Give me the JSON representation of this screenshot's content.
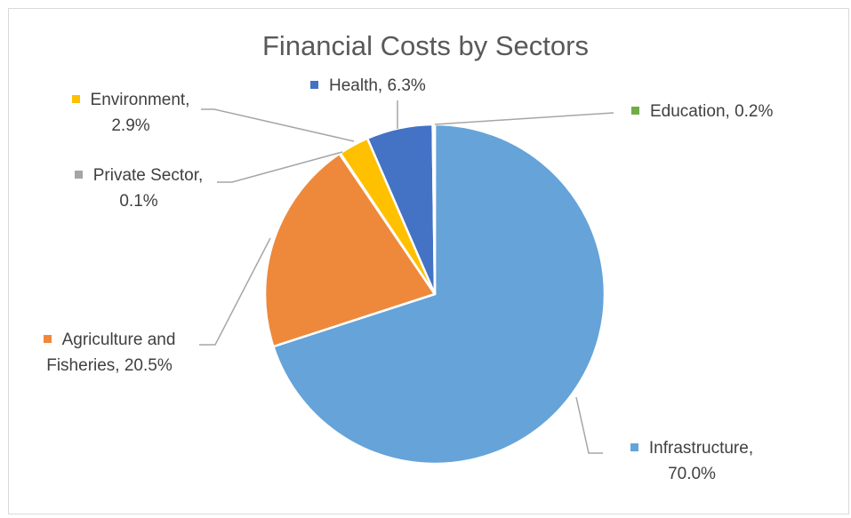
{
  "chart_data": {
    "type": "pie",
    "title": "Financial Costs by Sectors",
    "slices": [
      {
        "label": "Infrastructure",
        "value": 70.0,
        "text": "70.0%",
        "color": "#65a3d9"
      },
      {
        "label": "Agriculture and Fisheries",
        "value": 20.5,
        "text": "20.5%",
        "color": "#ee893b"
      },
      {
        "label": "Private Sector",
        "value": 0.1,
        "text": "0.1%",
        "color": "#a5a5a5"
      },
      {
        "label": "Environment",
        "value": 2.9,
        "text": "2.9%",
        "color": "#ffc000"
      },
      {
        "label": "Health",
        "value": 6.3,
        "text": "6.3%",
        "color": "#4472c4"
      },
      {
        "label": "Education",
        "value": 0.2,
        "text": "0.2%",
        "color": "#70ad47"
      }
    ]
  },
  "labels": {
    "health": "Health, 6.3%",
    "education": "Education, 0.2%",
    "environment_1": "Environment,",
    "environment_2": "2.9%",
    "private_1": "Private Sector,",
    "private_2": "0.1%",
    "agri_1": "Agriculture and",
    "agri_2": "Fisheries, 20.5%",
    "infra_1": "Infrastructure,",
    "infra_2": "70.0%"
  }
}
